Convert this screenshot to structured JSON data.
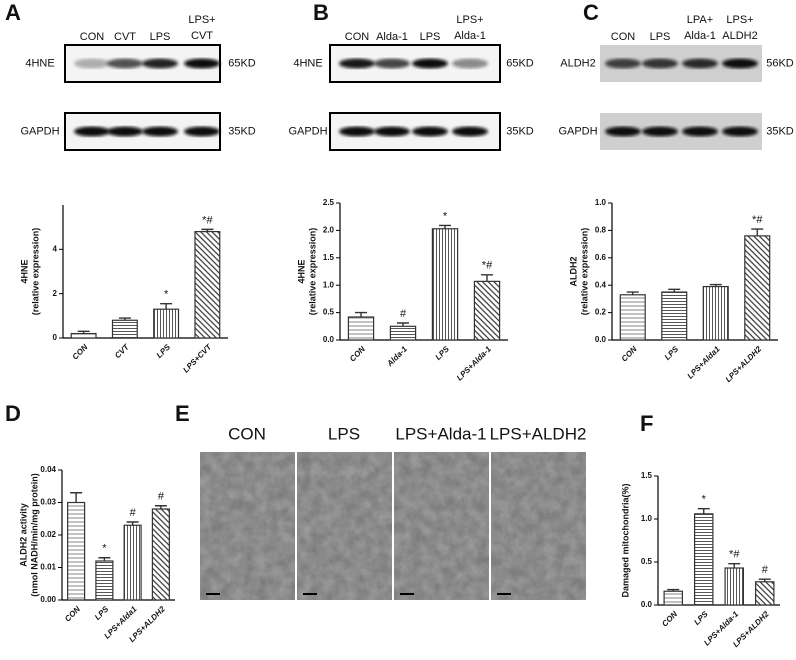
{
  "panel_labels": [
    "A",
    "B",
    "C",
    "D",
    "E",
    "F"
  ],
  "blots": [
    {
      "lanes": [
        [
          "CON"
        ],
        [
          "CVT"
        ],
        [
          "LPS"
        ],
        [
          "LPS+",
          "CVT"
        ]
      ],
      "rows": [
        {
          "protein": "4HNE",
          "size": "65KD"
        },
        {
          "protein": "GAPDH",
          "size": "35KD"
        }
      ]
    },
    {
      "lanes": [
        [
          "CON"
        ],
        [
          "Alda-1"
        ],
        [
          "LPS"
        ],
        [
          "LPS+",
          "Alda-1"
        ]
      ],
      "rows": [
        {
          "protein": "4HNE",
          "size": "65KD"
        },
        {
          "protein": "GAPDH",
          "size": "35KD"
        }
      ]
    },
    {
      "lanes": [
        [
          "CON"
        ],
        [
          "LPS"
        ],
        [
          "LPA+",
          "Alda-1"
        ],
        [
          "LPS+",
          "ALDH2"
        ]
      ],
      "rows": [
        {
          "protein": "ALDH2",
          "size": "56KD"
        },
        {
          "protein": "GAPDH",
          "size": "35KD"
        }
      ]
    }
  ],
  "em": {
    "labels": [
      "CON",
      "LPS",
      "LPS+Alda-1",
      "LPS+ALDH2"
    ]
  },
  "chart_data": [
    {
      "type": "bar",
      "ylabel": [
        "4HNE",
        "(relative expression)"
      ],
      "categories": [
        "CON",
        "CVT",
        "LPS",
        "LPS+CVT"
      ],
      "values": [
        0.2,
        0.8,
        1.3,
        4.8
      ],
      "errors": [
        0.1,
        0.1,
        0.25,
        0.1
      ],
      "annotations": [
        null,
        null,
        "*",
        "*#"
      ],
      "ylim": [
        0,
        6
      ],
      "yticks": [
        0,
        2,
        4
      ],
      "color": "#333333"
    },
    {
      "type": "bar",
      "ylabel": [
        "4HNE",
        "(relative expression)"
      ],
      "categories": [
        "CON",
        "Alda-1",
        "LPS",
        "LPS+Alda-1"
      ],
      "values": [
        0.42,
        0.25,
        2.03,
        1.07
      ],
      "errors": [
        0.08,
        0.06,
        0.06,
        0.12
      ],
      "annotations": [
        null,
        "#",
        "*",
        "*#"
      ],
      "ylim": [
        0,
        2.5
      ],
      "yticks": [
        {
          "value": 0,
          "label": "0.0"
        },
        0.5,
        {
          "value": 1,
          "label": "1.0"
        },
        1.5,
        {
          "value": 2,
          "label": "2.0"
        },
        2.5
      ],
      "color": "#333333"
    },
    {
      "type": "bar",
      "ylabel": [
        "ALDH2",
        "(relative expression)"
      ],
      "categories": [
        "CON",
        "LPS",
        "LPS+Alda1",
        "LPS+ALDH2"
      ],
      "values": [
        0.33,
        0.35,
        0.39,
        0.76
      ],
      "errors": [
        0.02,
        0.02,
        0.015,
        0.05
      ],
      "annotations": [
        null,
        null,
        null,
        "*#"
      ],
      "ylim": [
        0,
        1
      ],
      "yticks": [
        {
          "value": 0,
          "label": "0.0"
        },
        0.2,
        0.4,
        0.6,
        0.8,
        {
          "value": 1,
          "label": "1.0"
        }
      ],
      "color": "#333333"
    },
    {
      "type": "bar",
      "ylabel": [
        "ALDH2 activity",
        "(nmol NADH/min/mg protein)"
      ],
      "categories": [
        "CON",
        "LPS",
        "LPS+Alda1",
        "LPS+ALDH2"
      ],
      "values": [
        0.03,
        0.012,
        0.023,
        0.028
      ],
      "errors": [
        0.003,
        0.001,
        0.001,
        0.001
      ],
      "annotations": [
        null,
        "*",
        "#",
        "#"
      ],
      "ylim": [
        0,
        0.04
      ],
      "yticks": [
        {
          "value": 0,
          "label": "0.00"
        },
        0.01,
        0.02,
        0.03,
        0.04
      ],
      "color": "#333333"
    },
    {
      "type": "bar",
      "ylabel": [
        "Damaged mitochondria(%)"
      ],
      "categories": [
        "CON",
        "LPS",
        "LPS+Alda-1",
        "LPS+ALDH2"
      ],
      "values": [
        0.16,
        1.06,
        0.43,
        0.27
      ],
      "errors": [
        0.02,
        0.06,
        0.05,
        0.03
      ],
      "annotations": [
        null,
        "*",
        "*#",
        "#"
      ],
      "ylim": [
        0,
        1.5
      ],
      "yticks": [
        {
          "value": 0,
          "label": "0.0"
        },
        0.5,
        {
          "value": 1,
          "label": "1.0"
        },
        1.5
      ],
      "color": "#333333"
    }
  ]
}
